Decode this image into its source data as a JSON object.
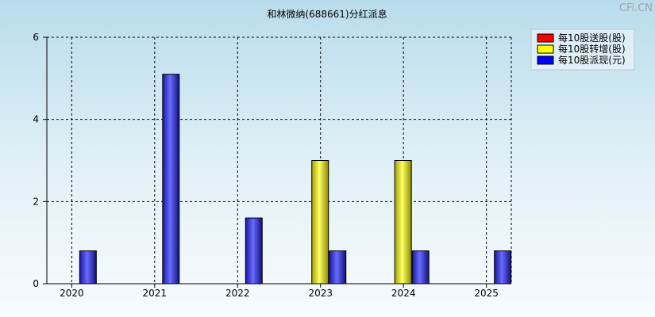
{
  "chart_data": {
    "type": "bar",
    "title": "和林微纳(688661)分红派息",
    "watermark": "CFi.CN",
    "categories": [
      "2020",
      "2021",
      "2022",
      "2023",
      "2024",
      "2025"
    ],
    "ylim": [
      0,
      6
    ],
    "yticks": [
      0,
      2,
      4,
      6
    ],
    "grid": true,
    "legend_position": "top-right",
    "series": [
      {
        "name": "每10股送股(股)",
        "color": "#ff0000",
        "values": [
          0,
          0,
          0,
          0,
          0,
          0
        ]
      },
      {
        "name": "每10股转增(股)",
        "color": "#ffff00",
        "values": [
          0,
          0,
          0,
          3.0,
          3.0,
          0
        ]
      },
      {
        "name": "每10股派现(元)",
        "color": "#0000ff",
        "values": [
          0.8,
          5.1,
          1.6,
          0.8,
          0.8,
          0.8
        ]
      }
    ]
  }
}
